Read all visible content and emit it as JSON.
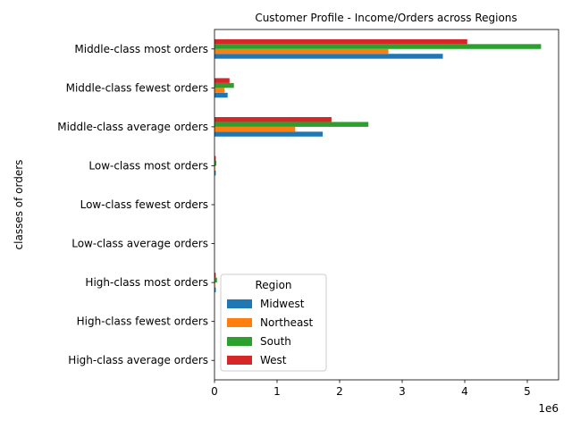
{
  "chart_data": {
    "type": "bar",
    "orientation": "horizontal",
    "title": "Customer Profile - Income/Orders across Regions",
    "xlabel": "",
    "ylabel": "classes of orders",
    "x_scale_label": "1e6",
    "xlim": [
      0,
      5.5
    ],
    "x_ticks": [
      0,
      1,
      2,
      3,
      4,
      5
    ],
    "grid": false,
    "categories": [
      "High-class average orders",
      "High-class fewest orders",
      "High-class most orders",
      "Low-class average orders",
      "Low-class fewest orders",
      "Low-class most orders",
      "Middle-class average orders",
      "Middle-class fewest orders",
      "Middle-class most orders"
    ],
    "legend": {
      "title": "Region",
      "placement": "lower-center"
    },
    "series": [
      {
        "name": "Midwest",
        "color": "#1f77b4",
        "values": [
          0.0,
          0.0,
          0.02,
          0.0,
          0.0,
          0.02,
          1.73,
          0.21,
          3.65
        ]
      },
      {
        "name": "Northeast",
        "color": "#ff7f0e",
        "values": [
          0.0,
          0.0,
          0.01,
          0.0,
          0.0,
          0.01,
          1.29,
          0.16,
          2.78
        ]
      },
      {
        "name": "South",
        "color": "#2ca02c",
        "values": [
          0.0,
          0.0,
          0.04,
          0.0,
          0.0,
          0.03,
          2.46,
          0.31,
          5.22
        ]
      },
      {
        "name": "West",
        "color": "#d62728",
        "values": [
          0.0,
          0.0,
          0.02,
          0.0,
          0.0,
          0.02,
          1.87,
          0.24,
          4.04
        ]
      }
    ]
  }
}
